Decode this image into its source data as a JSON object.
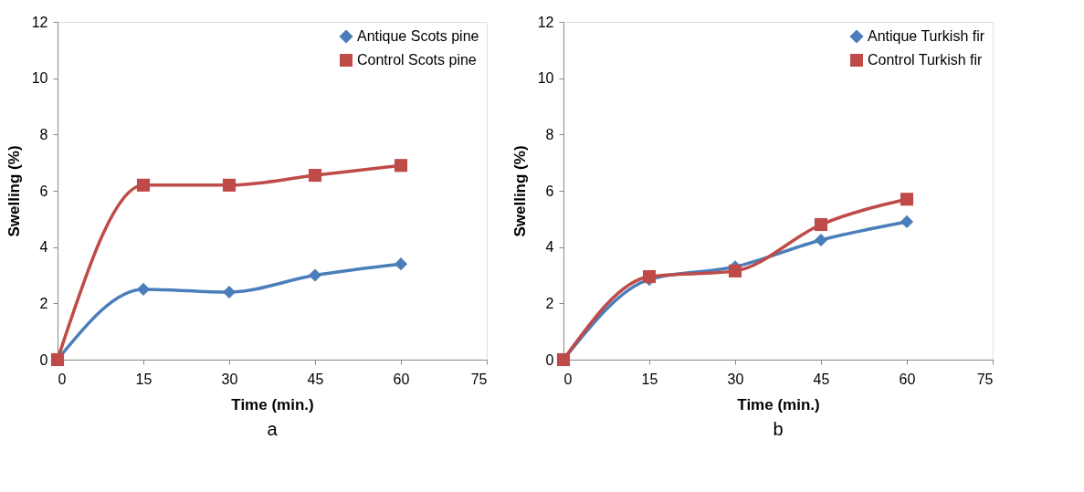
{
  "chart_data": [
    {
      "type": "line",
      "xlabel": "Time (min.)",
      "ylabel": "Swelling (%)",
      "annotations": [
        "a"
      ],
      "x": [
        0,
        15,
        30,
        45,
        60
      ],
      "xlim": [
        0,
        75
      ],
      "xticks": [
        0,
        15,
        30,
        45,
        60,
        75
      ],
      "ylim": [
        0,
        12
      ],
      "yticks": [
        0,
        2,
        4,
        6,
        8,
        10,
        12
      ],
      "grid": false,
      "legend": "top right",
      "series": [
        {
          "name": "Antique Scots pine",
          "color": "#4a7ebb",
          "marker": "diamond",
          "values": [
            0,
            2.5,
            2.4,
            3.0,
            3.4
          ]
        },
        {
          "name": "Control Scots pine",
          "color": "#be4b48",
          "marker": "square",
          "values": [
            0,
            6.2,
            6.2,
            6.55,
            6.9
          ]
        }
      ]
    },
    {
      "type": "line",
      "xlabel": "Time (min.)",
      "ylabel": "Swelling (%)",
      "annotations": [
        "b"
      ],
      "x": [
        0,
        15,
        30,
        45,
        60
      ],
      "xlim": [
        0,
        75
      ],
      "xticks": [
        0,
        15,
        30,
        45,
        60,
        75
      ],
      "ylim": [
        0,
        12
      ],
      "yticks": [
        0,
        2,
        4,
        6,
        8,
        10,
        12
      ],
      "grid": false,
      "legend": "top right",
      "series": [
        {
          "name": "Antique Turkish fir",
          "color": "#4a7ebb",
          "marker": "diamond",
          "values": [
            0,
            2.85,
            3.3,
            4.25,
            4.9
          ]
        },
        {
          "name": "Control Turkish fir",
          "color": "#be4b48",
          "marker": "square",
          "values": [
            0,
            2.95,
            3.15,
            4.8,
            5.7
          ]
        }
      ]
    }
  ]
}
